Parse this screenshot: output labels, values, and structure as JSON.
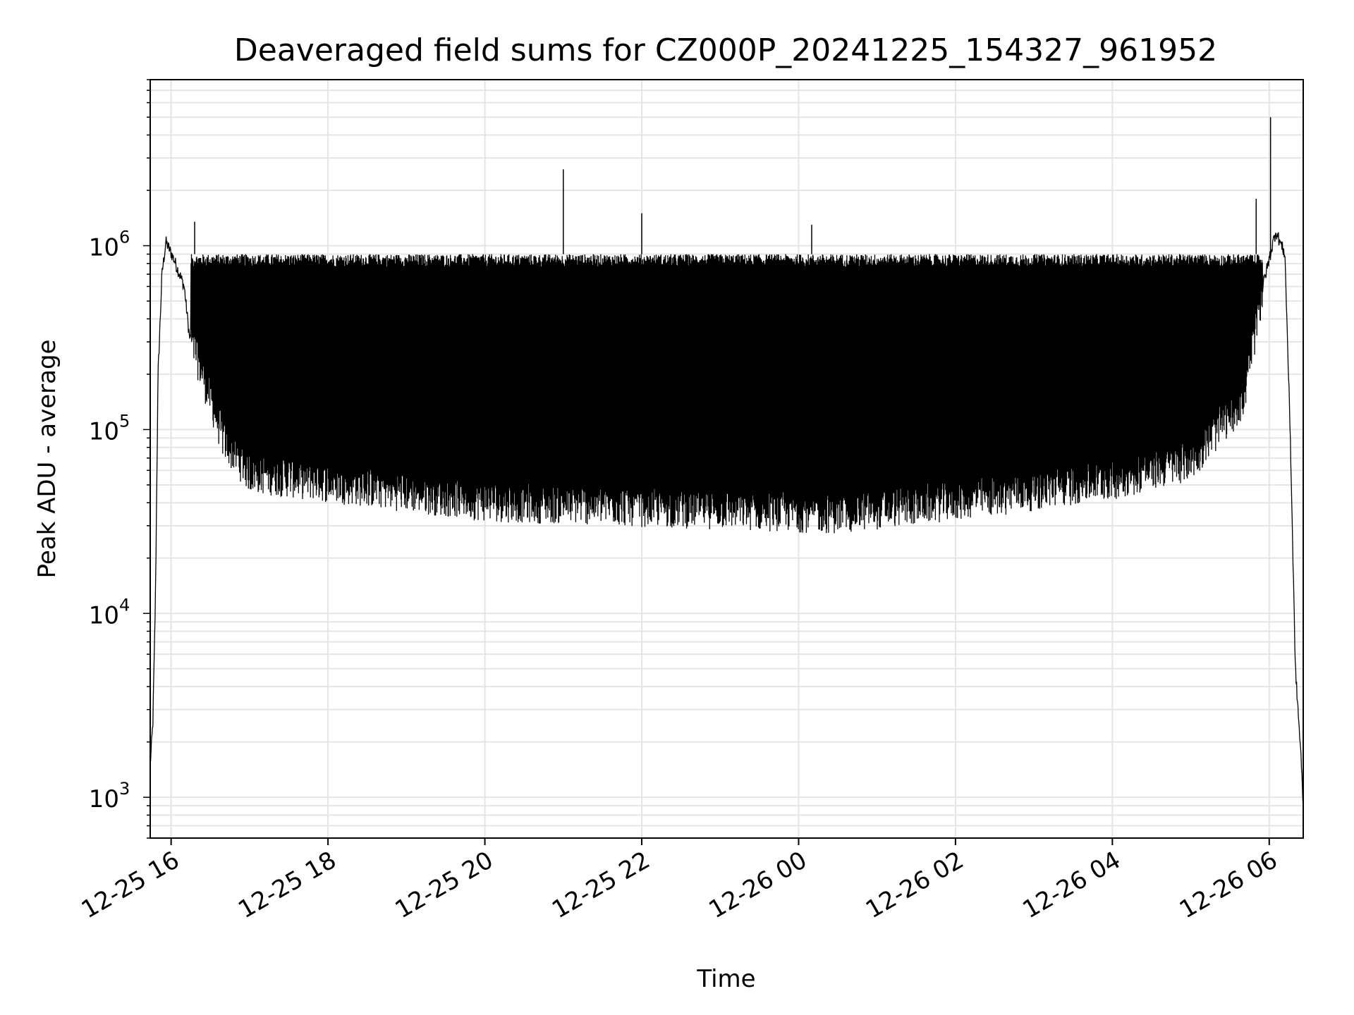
{
  "chart_data": {
    "type": "line",
    "title": "Deaveraged field sums for CZ000P_20241225_154327_961952",
    "xlabel": "Time",
    "ylabel": "Peak ADU - average",
    "y_scale": "log",
    "ylim": [
      600,
      8000000
    ],
    "xlim": [
      "2024-12-25 15:44",
      "2024-12-26 06:26"
    ],
    "grid": true,
    "grid_minor": true,
    "line_color": "#000000",
    "grid_color": "#e5e5e5",
    "x_ticks": [
      {
        "t": "2024-12-25 16:00",
        "label": "12-25 16"
      },
      {
        "t": "2024-12-25 18:00",
        "label": "12-25 18"
      },
      {
        "t": "2024-12-25 20:00",
        "label": "12-25 20"
      },
      {
        "t": "2024-12-25 22:00",
        "label": "12-25 22"
      },
      {
        "t": "2024-12-26 00:00",
        "label": "12-26 00"
      },
      {
        "t": "2024-12-26 02:00",
        "label": "12-26 02"
      },
      {
        "t": "2024-12-26 04:00",
        "label": "12-26 04"
      },
      {
        "t": "2024-12-26 06:00",
        "label": "12-26 06"
      }
    ],
    "y_ticks": [
      {
        "value": 1000,
        "base": "10",
        "exp": "3"
      },
      {
        "value": 10000,
        "base": "10",
        "exp": "4"
      },
      {
        "value": 100000,
        "base": "10",
        "exp": "5"
      },
      {
        "value": 1000000,
        "base": "10",
        "exp": "6"
      }
    ],
    "series": [
      {
        "style": "dense-oscillating",
        "points": [
          [
            "2024-12-25 15:44",
            1500
          ],
          [
            "2024-12-25 15:46",
            2500
          ],
          [
            "2024-12-25 15:48",
            12000
          ],
          [
            "2024-12-25 15:50",
            200000
          ],
          [
            "2024-12-25 15:53",
            700000
          ],
          [
            "2024-12-25 15:56",
            1050000
          ],
          [
            "2024-12-25 16:02",
            850000
          ],
          [
            "2024-12-25 16:10",
            600000
          ],
          [
            "2024-12-25 16:14",
            320000
          ],
          [
            "2024-12-25 16:20",
            250000
          ],
          [
            "2024-12-25 16:30",
            150000
          ],
          [
            "2024-12-25 16:40",
            90000
          ],
          [
            "2024-12-25 17:00",
            60000
          ],
          [
            "2024-12-25 20:00",
            42000
          ],
          [
            "2024-12-25 23:00",
            38000
          ],
          [
            "2024-12-26 00:30",
            36000
          ],
          [
            "2024-12-26 02:30",
            45000
          ],
          [
            "2024-12-26 04:00",
            55000
          ],
          [
            "2024-12-26 05:00",
            70000
          ],
          [
            "2024-12-26 05:40",
            150000
          ],
          [
            "2024-12-26 05:55",
            600000
          ],
          [
            "2024-12-26 06:05",
            1200000
          ],
          [
            "2024-12-26 06:12",
            900000
          ],
          [
            "2024-12-26 06:16",
            100000
          ],
          [
            "2024-12-26 06:20",
            5000
          ],
          [
            "2024-12-26 06:24",
            1800
          ],
          [
            "2024-12-26 06:26",
            900
          ]
        ],
        "upper_envelope": 900000,
        "spikes": [
          [
            "2024-12-25 16:18",
            1350000
          ],
          [
            "2024-12-25 21:00",
            2600000
          ],
          [
            "2024-12-25 22:00",
            1500000
          ],
          [
            "2024-12-26 00:10",
            1300000
          ],
          [
            "2024-12-26 05:50",
            1800000
          ],
          [
            "2024-12-26 06:01",
            5000000
          ]
        ]
      }
    ]
  }
}
